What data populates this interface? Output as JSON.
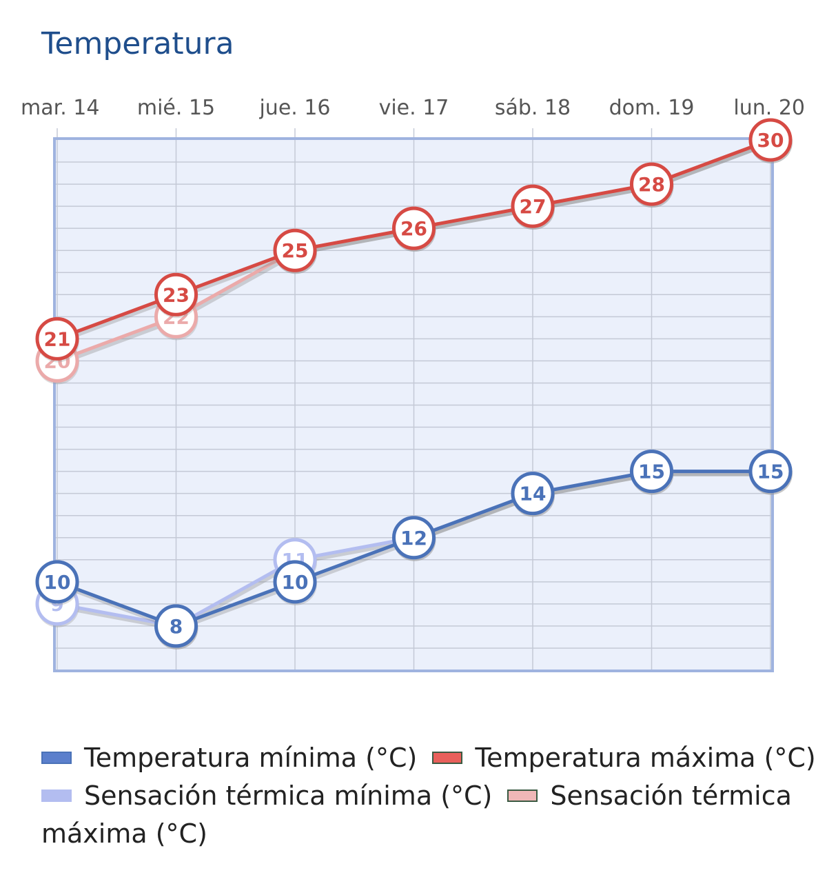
{
  "title": "Temperatura",
  "chart_data": {
    "type": "line",
    "title": "Temperatura",
    "categories": [
      "mar. 14",
      "mié. 15",
      "jue. 16",
      "vie. 17",
      "sáb. 18",
      "dom. 19",
      "lun. 20"
    ],
    "ylim": [
      6,
      30
    ],
    "grid": true,
    "legend_position": "bottom",
    "series": [
      {
        "name": "Temperatura mínima (°C)",
        "values": [
          10,
          8,
          10,
          12,
          14,
          15,
          15
        ],
        "color": "#4a72b8",
        "fill": "#5b7fcc",
        "border": "#4a72b8"
      },
      {
        "name": "Temperatura máxima (°C)",
        "values": [
          21,
          23,
          25,
          26,
          27,
          28,
          30
        ],
        "color": "#d64a44",
        "fill": "#e8605b",
        "border": "#3a5a42"
      },
      {
        "name": "Sensación térmica mínima (°C)",
        "values": [
          9,
          8,
          11,
          12,
          14,
          15,
          15
        ],
        "color": "#b3bdf0",
        "fill": "#b3bdf0",
        "border": "#b3bdf0"
      },
      {
        "name": "Sensación térmica máxima (°C)",
        "values": [
          20,
          22,
          25,
          26,
          27,
          28,
          30
        ],
        "color": "#ebaaaa",
        "fill": "#f0b7b7",
        "border": "#3a5a42"
      }
    ]
  }
}
